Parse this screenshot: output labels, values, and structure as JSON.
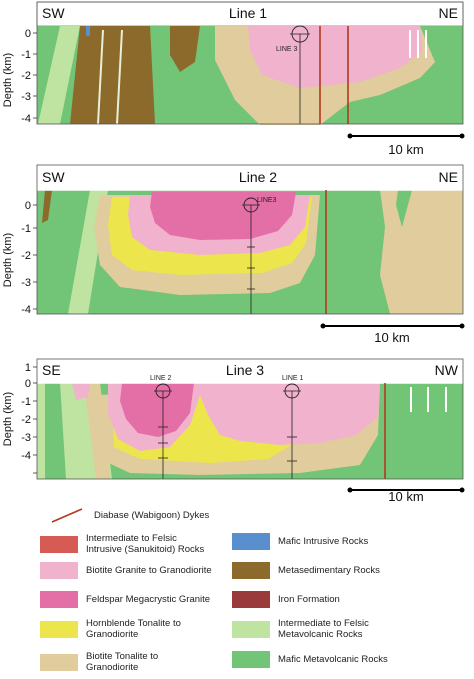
{
  "panels": [
    {
      "title": "Line 1",
      "left": "SW",
      "right": "NE",
      "ylabel": "Depth (km)",
      "ticks": [
        "0",
        "-1",
        "-2",
        "-3",
        "-4"
      ],
      "labels": [
        "LINE 3"
      ],
      "scale": "10 km"
    },
    {
      "title": "Line 2",
      "left": "SW",
      "right": "NE",
      "ylabel": "Depth (km)",
      "ticks": [
        "0",
        "-1",
        "-2",
        "-3",
        "-4"
      ],
      "labels": [
        "LINE3"
      ],
      "scale": "10 km"
    },
    {
      "title": "Line 3",
      "left": "SE",
      "right": "NW",
      "ylabel": "Depth (km)",
      "ticks": [
        "1",
        "0",
        "-1",
        "-2",
        "-3",
        "-4"
      ],
      "labels": [
        "LINE 2",
        "LINE 1"
      ],
      "scale": "10 km"
    }
  ],
  "legend": {
    "dyke": {
      "label": "Diabase (Wabigoon) Dykes",
      "color": "#b03a1e"
    },
    "items": [
      {
        "label": "Intermediate to Felsic Intrusive (Sanukitoid) Rocks",
        "color": "#d65b55"
      },
      {
        "label": "Mafic Intrusive Rocks",
        "color": "#5a8fcf"
      },
      {
        "label": "Biotite Granite to Granodiorite",
        "color": "#f0b2cd"
      },
      {
        "label": "Metasedimentary Rocks",
        "color": "#8c6a2c"
      },
      {
        "label": "Feldspar Megacrystic Granite",
        "color": "#e46ea6"
      },
      {
        "label": "Iron Formation",
        "color": "#9b3a3a"
      },
      {
        "label": "Hornblende Tonalite to Granodiorite",
        "color": "#ece64c"
      },
      {
        "label": "Intermediate to Felsic Metavolcanic Rocks",
        "color": "#bfe3a1"
      },
      {
        "label": "Biotite Tonalite to Granodiorite",
        "color": "#e0cc9c"
      },
      {
        "label": "Mafic Metavolcanic Rocks",
        "color": "#72c476"
      }
    ]
  }
}
